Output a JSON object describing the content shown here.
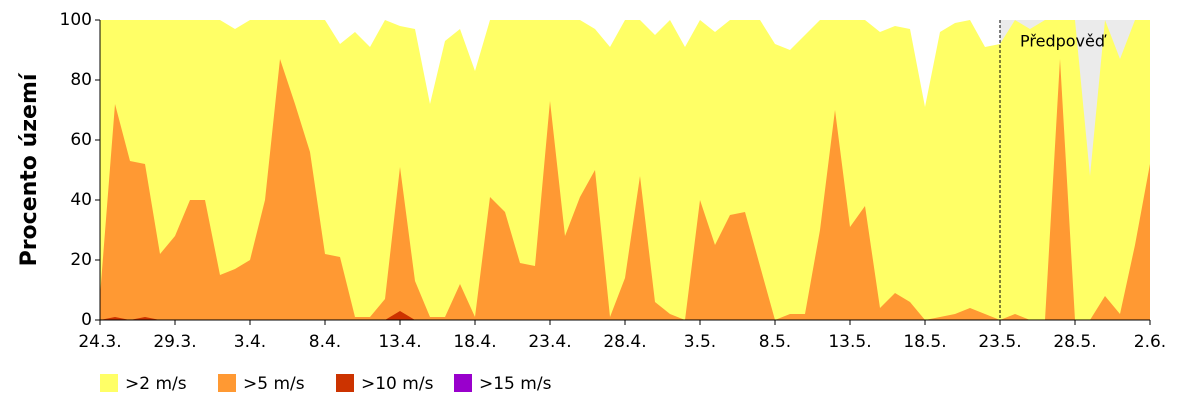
{
  "chart_data": {
    "type": "area",
    "ylabel": "Procento území",
    "categories": [
      "24.3.",
      null,
      null,
      null,
      null,
      "29.3.",
      null,
      null,
      null,
      null,
      "3.4.",
      null,
      null,
      null,
      null,
      "8.4.",
      null,
      null,
      null,
      null,
      "13.4.",
      null,
      null,
      null,
      null,
      "18.4.",
      null,
      null,
      null,
      null,
      "23.4.",
      null,
      null,
      null,
      null,
      "28.4.",
      null,
      null,
      null,
      null,
      "3.5.",
      null,
      null,
      null,
      null,
      "8.5.",
      null,
      null,
      null,
      null,
      "13.5.",
      null,
      null,
      null,
      null,
      "18.5.",
      null,
      null,
      null,
      null,
      "23.5.",
      null,
      null,
      null,
      null,
      "28.5.",
      null,
      null,
      null,
      null,
      "2.6."
    ],
    "series": [
      {
        "name": ">2 m/s",
        "color": "#ffff66",
        "values": [
          100,
          100,
          100,
          100,
          100,
          100,
          100,
          100,
          100,
          97,
          100,
          100,
          100,
          100,
          100,
          100,
          92,
          96,
          91,
          100,
          98,
          97,
          72,
          93,
          97,
          83,
          100,
          100,
          100,
          100,
          100,
          100,
          100,
          97,
          91,
          100,
          100,
          95,
          100,
          91,
          100,
          96,
          100,
          100,
          100,
          92,
          90,
          95,
          100,
          100,
          100,
          100,
          96,
          98,
          97,
          71,
          96,
          99,
          100,
          91,
          92,
          100,
          97,
          100,
          100,
          100,
          48,
          100,
          87,
          100,
          100
        ]
      },
      {
        "name": ">5 m/s",
        "color": "#ff9933",
        "values": [
          8,
          72,
          53,
          52,
          22,
          28,
          40,
          40,
          15,
          17,
          20,
          40,
          87,
          72,
          56,
          22,
          21,
          1,
          1,
          7,
          51,
          13,
          1,
          1,
          12,
          1,
          41,
          36,
          19,
          18,
          73,
          28,
          41,
          50,
          1,
          14,
          48,
          6,
          2,
          0,
          40,
          25,
          35,
          36,
          18,
          0,
          2,
          2,
          30,
          70,
          31,
          38,
          4,
          9,
          6,
          0,
          1,
          2,
          4,
          2,
          0,
          2,
          0,
          0,
          87,
          0,
          0,
          8,
          2,
          25,
          52
        ]
      },
      {
        "name": ">10 m/s",
        "color": "#cc3300",
        "values": [
          0,
          1,
          0,
          1,
          0,
          0,
          0,
          0,
          0,
          0,
          0,
          0,
          0,
          0,
          0,
          0,
          0,
          0,
          0,
          0,
          3,
          0,
          0,
          0,
          0,
          0,
          0,
          0,
          0,
          0,
          0,
          0,
          0,
          0,
          0,
          0,
          0,
          0,
          0,
          0,
          0,
          0,
          0,
          0,
          0,
          0,
          0,
          0,
          0,
          0,
          0,
          0,
          0,
          0,
          0,
          0,
          0,
          0,
          0,
          0,
          0,
          0,
          0,
          0,
          0,
          0,
          0,
          0,
          0,
          0,
          0
        ]
      },
      {
        "name": ">15 m/s",
        "color": "#9900cc",
        "values": [
          0,
          0,
          0,
          0,
          0,
          0,
          0,
          0,
          0,
          0,
          0,
          0,
          0,
          0,
          0,
          0,
          0,
          0,
          0,
          0,
          0,
          0,
          0,
          0,
          0,
          0,
          0,
          0,
          0,
          0,
          0,
          0,
          0,
          0,
          0,
          0,
          0,
          0,
          0,
          0,
          0,
          0,
          0,
          0,
          0,
          0,
          0,
          0,
          0,
          0,
          0,
          0,
          0,
          0,
          0,
          0,
          0,
          0,
          0,
          0,
          0,
          0,
          0,
          0,
          0,
          0,
          0,
          0,
          0,
          0,
          0
        ]
      }
    ],
    "ylim": [
      0,
      100
    ],
    "yticks": [
      0,
      20,
      40,
      60,
      80,
      100
    ],
    "forecast_label": "Předpověď",
    "forecast_from": "23.5.",
    "legend": "bottom"
  }
}
